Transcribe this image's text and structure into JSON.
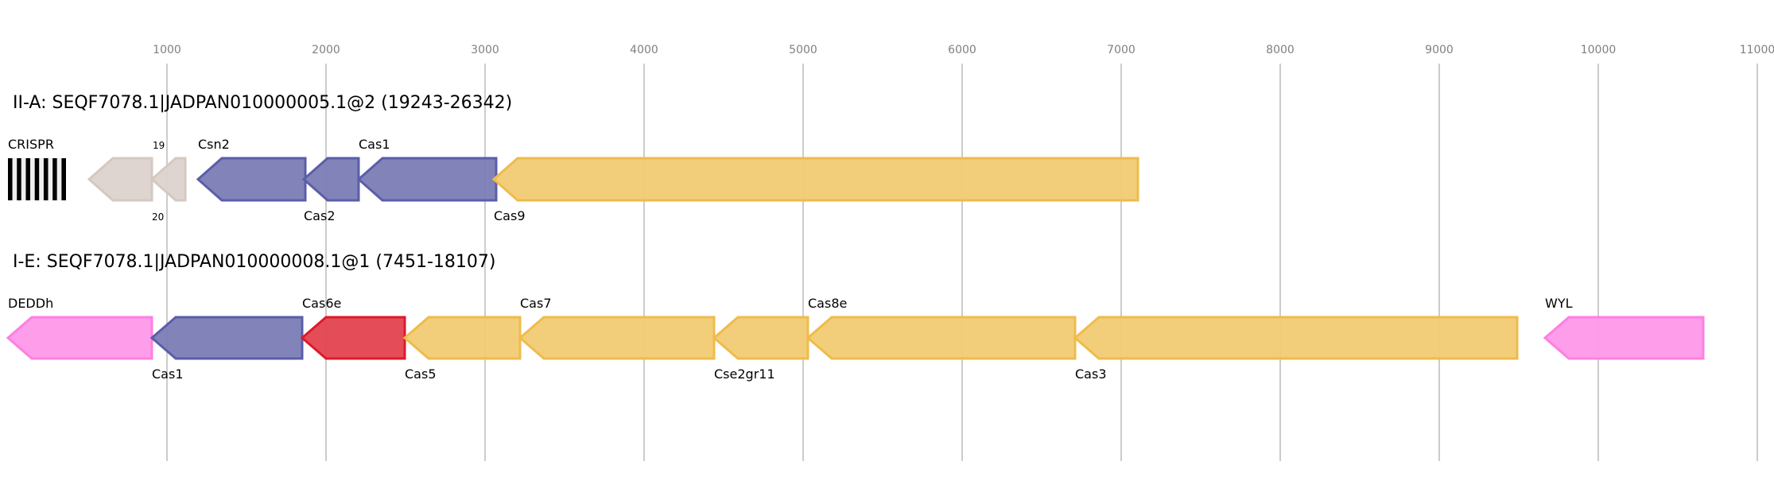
{
  "axis": {
    "ticks": [
      1000,
      2000,
      3000,
      4000,
      5000,
      6000,
      7000,
      8000,
      9000,
      10000,
      11000
    ],
    "tick_labels": [
      "1000",
      "2000",
      "3000",
      "4000",
      "5000",
      "6000",
      "7000",
      "8000",
      "9000",
      "10000",
      "11000"
    ],
    "range": [
      0,
      11100
    ],
    "gridline_color": "#bbbbbb"
  },
  "colors": {
    "gray": {
      "fill": "#dcd3cf",
      "stroke": "#d4c8c0"
    },
    "blue": {
      "fill": "#7b7db5",
      "stroke": "#5a5ea8"
    },
    "gold": {
      "fill": "#f1cb74",
      "stroke": "#efbb4b"
    },
    "red": {
      "fill": "#e3434f",
      "stroke": "#de1a2a"
    },
    "pink": {
      "fill": "#fe98e8",
      "stroke": "#fe7fe1"
    }
  },
  "loci": [
    {
      "title": "II-A: SEQF7078.1|JADPAN010000005.1@2 (19243-26342)",
      "crispr": {
        "label": "CRISPR",
        "start": 0,
        "end": 365,
        "repeats": 7
      },
      "genes": [
        {
          "label": "19",
          "start": 510,
          "end": 905,
          "strand": "-",
          "color": "gray",
          "label_pos": "top",
          "small": true
        },
        {
          "label": "20",
          "start": 905,
          "end": 1115,
          "strand": "-",
          "color": "gray",
          "label_pos": "bottom",
          "small": true
        },
        {
          "label": "Csn2",
          "start": 1195,
          "end": 1870,
          "strand": "-",
          "color": "blue",
          "label_pos": "top"
        },
        {
          "label": "Cas2",
          "start": 1860,
          "end": 2205,
          "strand": "-",
          "color": "blue",
          "label_pos": "bottom"
        },
        {
          "label": "Cas1",
          "start": 2205,
          "end": 3070,
          "strand": "-",
          "color": "blue",
          "label_pos": "top"
        },
        {
          "label": "Cas9",
          "start": 3055,
          "end": 7105,
          "strand": "-",
          "color": "gold",
          "label_pos": "bottom"
        }
      ]
    },
    {
      "title": "I-E: SEQF7078.1|JADPAN010000008.1@1 (7451-18107)",
      "genes": [
        {
          "label": "DEDDh",
          "start": 0,
          "end": 905,
          "strand": "-",
          "color": "pink",
          "label_pos": "top"
        },
        {
          "label": "Cas1",
          "start": 905,
          "end": 1850,
          "strand": "-",
          "color": "blue",
          "label_pos": "bottom"
        },
        {
          "label": "Cas6e",
          "start": 1850,
          "end": 2495,
          "strand": "-",
          "color": "red",
          "label_pos": "top"
        },
        {
          "label": "Cas5",
          "start": 2495,
          "end": 3220,
          "strand": "-",
          "color": "gold",
          "label_pos": "bottom"
        },
        {
          "label": "Cas7",
          "start": 3220,
          "end": 4440,
          "strand": "-",
          "color": "gold",
          "label_pos": "top"
        },
        {
          "label": "Cse2gr11",
          "start": 4440,
          "end": 5030,
          "strand": "-",
          "color": "gold",
          "label_pos": "bottom"
        },
        {
          "label": "Cas8e",
          "start": 5030,
          "end": 6710,
          "strand": "-",
          "color": "gold",
          "label_pos": "top"
        },
        {
          "label": "Cas3",
          "start": 6710,
          "end": 9490,
          "strand": "-",
          "color": "gold",
          "label_pos": "bottom"
        },
        {
          "label": "WYL",
          "start": 9665,
          "end": 10660,
          "strand": "-",
          "color": "pink",
          "label_pos": "top"
        }
      ]
    }
  ]
}
